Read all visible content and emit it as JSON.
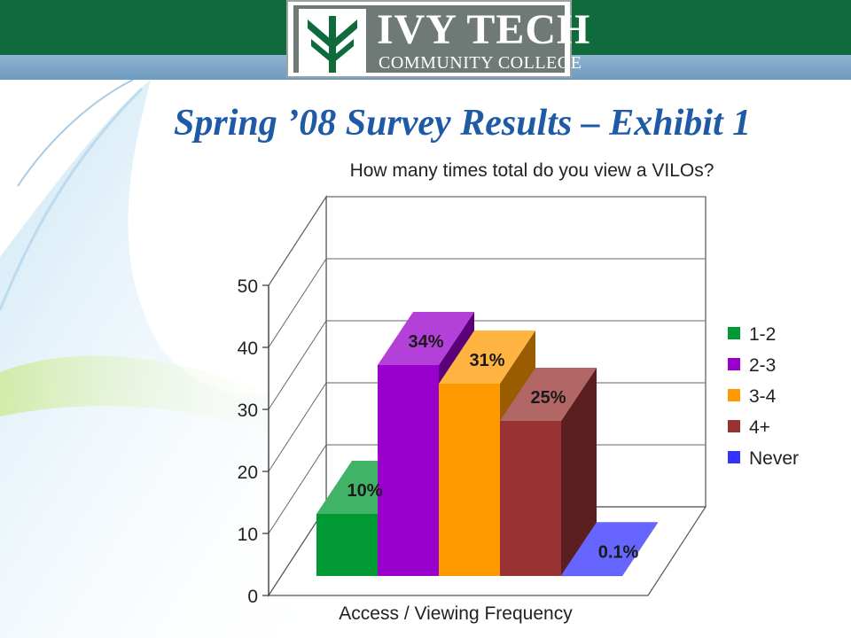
{
  "slide": {
    "title": "Spring ’08 Survey Results – Exhibit 1"
  },
  "logo": {
    "name": "IVY TECH",
    "subtitle": "COMMUNITY COLLEGE",
    "icon": "ivy-leaf-icon"
  },
  "colors": {
    "header_green": "#0f6b3b",
    "title_blue": "#1f5aa6"
  },
  "chart_data": {
    "type": "bar",
    "title": "How many times total do you view a VILOs?",
    "xlabel": "Access / Viewing Frequency",
    "ylabel": "",
    "ylim": [
      0,
      50
    ],
    "yticks": [
      0,
      10,
      20,
      30,
      40,
      50
    ],
    "grid": true,
    "legend_position": "right",
    "categories": [
      "1-2",
      "2-3",
      "3-4",
      "4+",
      "Never"
    ],
    "values": [
      10,
      34,
      31,
      25,
      0.1
    ],
    "data_labels": [
      "10%",
      "34%",
      "31%",
      "25%",
      "0.1%"
    ],
    "colors": [
      "#009933",
      "#9900cc",
      "#ff9900",
      "#993333",
      "#3333ff"
    ]
  }
}
